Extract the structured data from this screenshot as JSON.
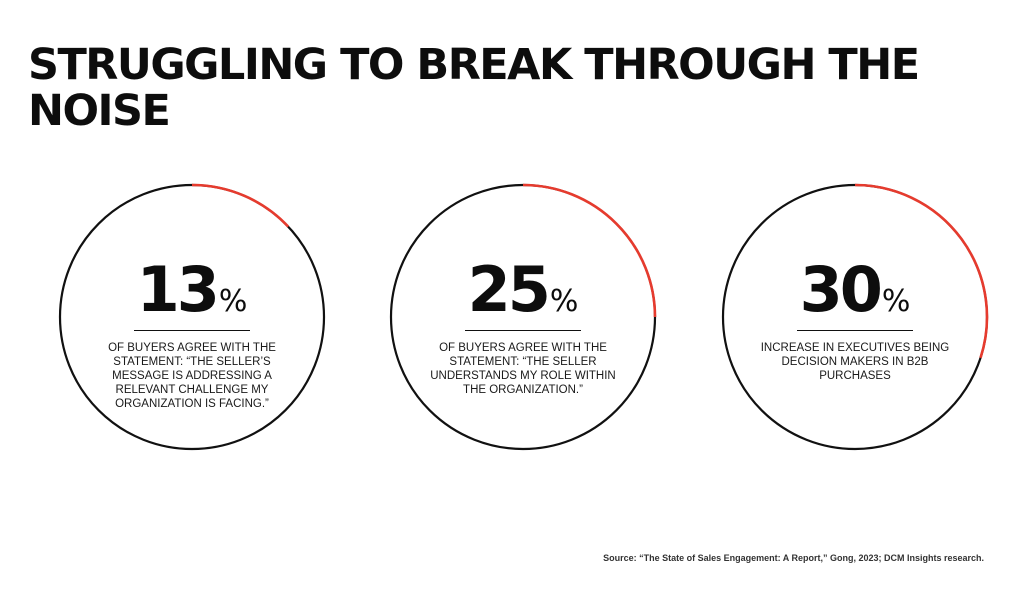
{
  "title": "STRUGGLING TO BREAK THROUGH THE NOISE",
  "colors": {
    "track": "#111111",
    "accent": "#e63b2e",
    "text": "#0d0d0d"
  },
  "chart_data": {
    "type": "pie",
    "title": "STRUGGLING TO BREAK THROUGH THE NOISE",
    "items": [
      {
        "value": 13,
        "unit": "%",
        "description": "OF BUYERS AGREE WITH THE STATEMENT: “THE SELLER’S MESSAGE IS ADDRESSING A RELEVANT CHALLENGE MY ORGANIZATION IS FACING.”"
      },
      {
        "value": 25,
        "unit": "%",
        "description": "OF BUYERS AGREE WITH THE STATEMENT: “THE SELLER UNDERSTANDS MY ROLE WITHIN THE ORGANIZATION.”"
      },
      {
        "value": 30,
        "unit": "%",
        "description": "INCREASE IN EXECUTIVES BEING DECISION MAKERS IN B2B PURCHASES"
      }
    ]
  },
  "source": "Source: “The State of Sales Engagement: A Report,” Gong, 2023; DCM Insights research."
}
